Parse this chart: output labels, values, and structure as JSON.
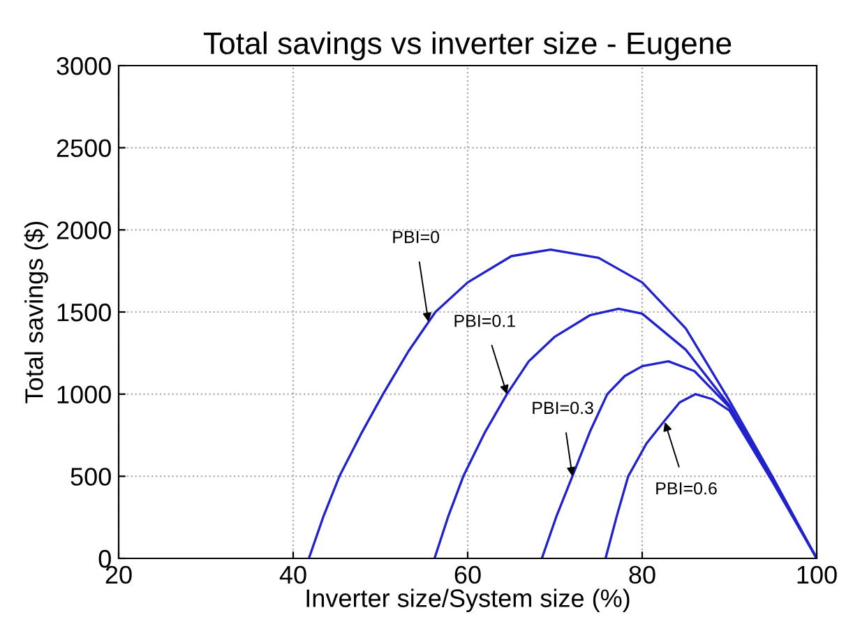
{
  "chart_data": {
    "type": "line",
    "title": "Total savings vs inverter size - Eugene",
    "xlabel": "Inverter size/System size (%)",
    "ylabel": "Total savings ($)",
    "xlim": [
      20,
      100
    ],
    "xticks": [
      20,
      40,
      60,
      80,
      100
    ],
    "ylim": [
      0,
      3000
    ],
    "yticks": [
      0,
      500,
      1000,
      1500,
      2000,
      2500,
      3000
    ],
    "grid": true,
    "line_style": "solid",
    "series": [
      {
        "color": "#2222cc",
        "x": [
          41.8,
          43.5,
          45.3,
          47.8,
          50.3,
          53.2,
          56.3,
          60,
          65,
          69.5,
          75,
          80,
          85,
          90,
          95,
          100
        ],
        "values": [
          0,
          260,
          500,
          760,
          1000,
          1260,
          1500,
          1680,
          1840,
          1880,
          1830,
          1680,
          1400,
          960,
          490,
          0
        ]
      },
      {
        "color": "#2222cc",
        "x": [
          56.2,
          57.8,
          59.5,
          62,
          64.5,
          67,
          70,
          74,
          77.3,
          80,
          85,
          90,
          95,
          100
        ],
        "values": [
          0,
          260,
          500,
          770,
          1000,
          1200,
          1350,
          1480,
          1520,
          1490,
          1270,
          930,
          475,
          0
        ]
      },
      {
        "color": "#2222cc",
        "x": [
          68.5,
          70.2,
          72,
          74,
          76,
          78,
          80,
          83,
          86,
          90,
          95,
          100
        ],
        "values": [
          0,
          260,
          500,
          770,
          1000,
          1110,
          1170,
          1200,
          1140,
          920,
          470,
          0
        ]
      },
      {
        "color": "#2222cc",
        "x": [
          75.8,
          77.1,
          78.4,
          80.5,
          82.6,
          84.3,
          86.1,
          88,
          90,
          95,
          100
        ],
        "values": [
          0,
          260,
          500,
          700,
          840,
          950,
          1000,
          970,
          900,
          460,
          0
        ]
      }
    ],
    "annotations": [
      {
        "text": "PBI=0",
        "x": 55.5,
        "y": 1440
      },
      {
        "text": "PBI=0.1",
        "x": 64.5,
        "y": 1000
      },
      {
        "text": "PBI=0.3",
        "x": 72,
        "y": 500
      },
      {
        "text": "PBI=0.6",
        "x": 82.6,
        "y": 830
      }
    ]
  }
}
